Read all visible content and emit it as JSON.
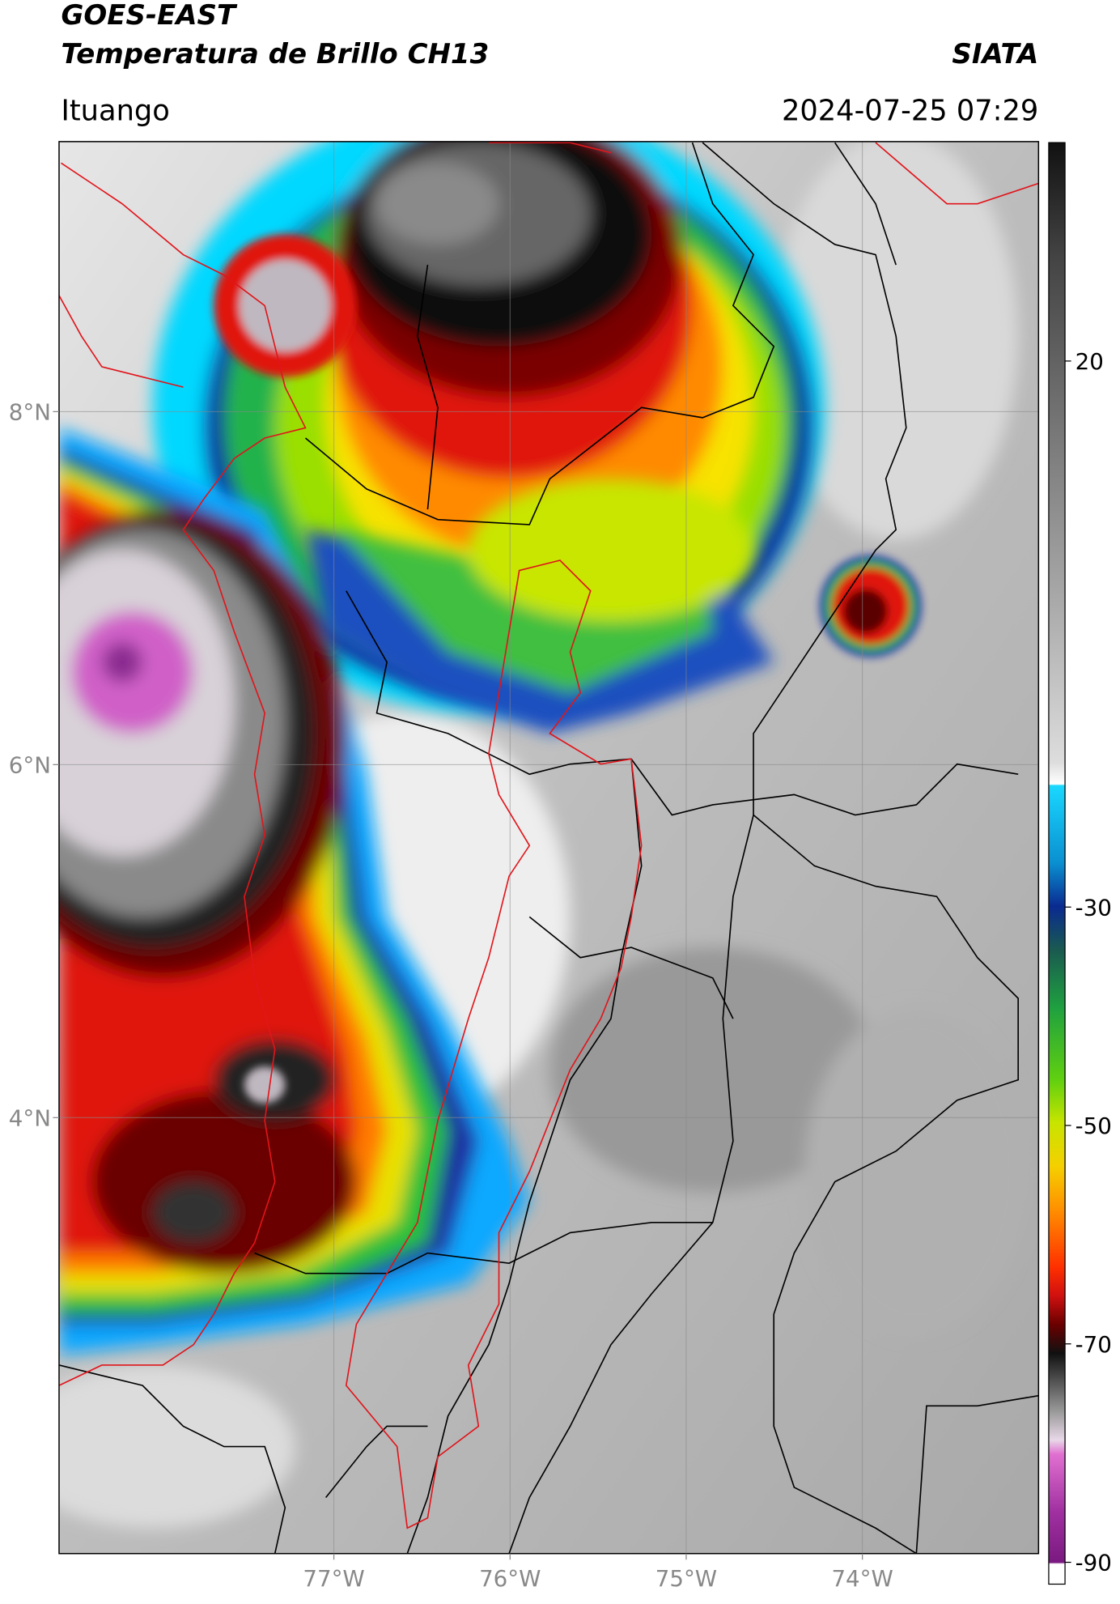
{
  "header": {
    "title": "GOES-EAST",
    "subtitle": "Temperatura de Brillo CH13",
    "source": "SIATA",
    "location": "Ituango",
    "datetime": "2024-07-25 07:29"
  },
  "map": {
    "xlim": [
      -78.56,
      -73
    ],
    "ylim": [
      1.53,
      9.53
    ],
    "xticks": [
      {
        "value": -77,
        "label": "77°W"
      },
      {
        "value": -76,
        "label": "76°W"
      },
      {
        "value": -75,
        "label": "75°W"
      },
      {
        "value": -74,
        "label": "74°W"
      }
    ],
    "yticks": [
      {
        "value": 4,
        "label": "4°N"
      },
      {
        "value": 6,
        "label": "6°N"
      },
      {
        "value": 8,
        "label": "8°N"
      }
    ],
    "grid": true
  },
  "colorbar": {
    "lim": [
      -92,
      40
    ],
    "ticks": [
      20,
      -30,
      -50,
      -70,
      -90
    ]
  }
}
